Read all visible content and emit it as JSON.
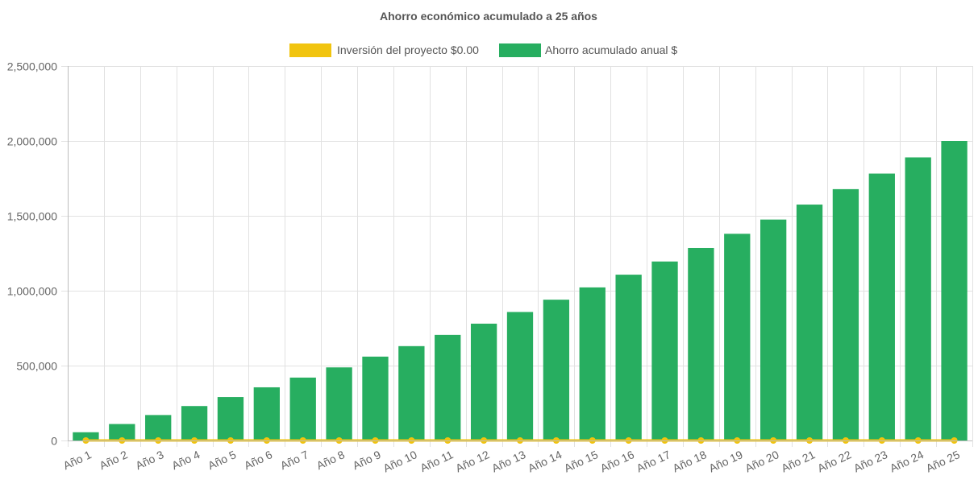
{
  "chart_data": {
    "type": "bar",
    "title": "Ahorro económico acumulado a 25 años",
    "categories": [
      "Año 1",
      "Año 2",
      "Año 3",
      "Año 4",
      "Año 5",
      "Año 6",
      "Año 7",
      "Año 8",
      "Año 9",
      "Año 10",
      "Año 11",
      "Año 12",
      "Año 13",
      "Año 14",
      "Año 15",
      "Año 16",
      "Año 17",
      "Año 18",
      "Año 19",
      "Año 20",
      "Año 21",
      "Año 22",
      "Año 23",
      "Año 24",
      "Año 25"
    ],
    "series": [
      {
        "name": "Inversión del proyecto $0.00",
        "type": "line",
        "color": "#f1c40f",
        "values": [
          0,
          0,
          0,
          0,
          0,
          0,
          0,
          0,
          0,
          0,
          0,
          0,
          0,
          0,
          0,
          0,
          0,
          0,
          0,
          0,
          0,
          0,
          0,
          0,
          0
        ]
      },
      {
        "name": "Ahorro acumulado anual $",
        "type": "bar",
        "color": "#27ae60",
        "values": [
          55000,
          110000,
          170000,
          230000,
          290000,
          355000,
          420000,
          488000,
          560000,
          630000,
          705000,
          780000,
          858000,
          940000,
          1022000,
          1107000,
          1195000,
          1285000,
          1380000,
          1475000,
          1575000,
          1678000,
          1782000,
          1890000,
          2000000
        ]
      }
    ],
    "ylim": [
      0,
      2500000
    ],
    "yticks": [
      "0",
      "500,000",
      "1,000,000",
      "1,500,000",
      "2,000,000",
      "2,500,000"
    ],
    "ytick_values": [
      0,
      500000,
      1000000,
      1500000,
      2000000,
      2500000
    ],
    "xlabel": "",
    "ylabel": "",
    "grid": true,
    "legend_position": "top"
  }
}
